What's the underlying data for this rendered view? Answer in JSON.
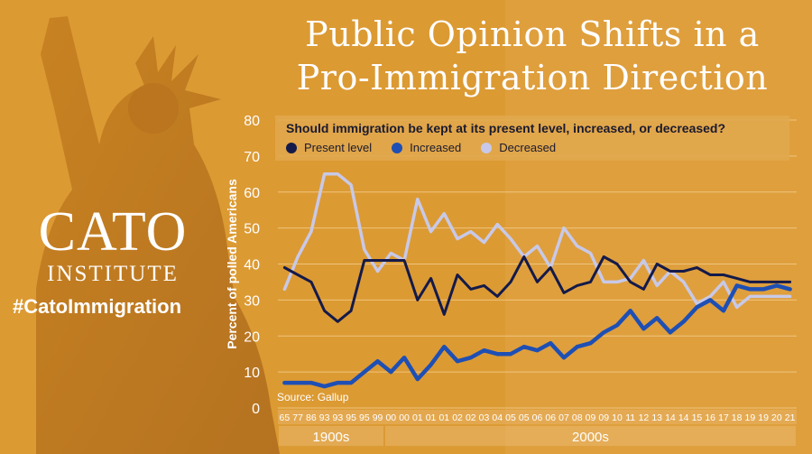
{
  "title_lines": [
    "Public Opinion Shifts in a",
    "Pro-Immigration Direction"
  ],
  "logo": {
    "word": "CATO",
    "sub": "INSTITUTE"
  },
  "hashtag": "#CatoImmigration",
  "source": "Source: Gallup",
  "colors": {
    "background": "#dc9a33",
    "present": "#141a4a",
    "increased": "#1e4fb4",
    "decreased": "#c8c9e8"
  },
  "chart_data": {
    "type": "line",
    "question": "Should immigration be kept at its present level, increased, or decreased?",
    "ylabel": "Percent of polled Americans",
    "ylim": [
      0,
      80
    ],
    "yticks": [
      0,
      10,
      20,
      30,
      40,
      50,
      60,
      70,
      80
    ],
    "x": [
      "65",
      "77",
      "86",
      "93",
      "93",
      "95",
      "95",
      "99",
      "00",
      "00",
      "01",
      "01",
      "01",
      "02",
      "02",
      "03",
      "04",
      "05",
      "05",
      "06",
      "06",
      "07",
      "08",
      "09",
      "09",
      "10",
      "11",
      "12",
      "13",
      "14",
      "14",
      "15",
      "16",
      "17",
      "18",
      "19",
      "19",
      "20",
      "21"
    ],
    "groups": [
      {
        "label": "1900s",
        "from": 0,
        "to": 7
      },
      {
        "label": "2000s",
        "from": 8,
        "to": 38
      }
    ],
    "grid": true,
    "legend_position": "top",
    "series": [
      {
        "name": "Present level",
        "values": [
          39,
          37,
          35,
          27,
          24,
          27,
          41,
          41,
          41,
          41,
          30,
          36,
          26,
          37,
          33,
          34,
          31,
          35,
          42,
          35,
          39,
          32,
          34,
          35,
          42,
          40,
          35,
          33,
          40,
          38,
          38,
          39,
          37,
          37,
          36,
          35,
          35,
          35,
          35
        ]
      },
      {
        "name": "Increased",
        "values": [
          7,
          7,
          7,
          6,
          7,
          7,
          10,
          13,
          10,
          14,
          8,
          12,
          17,
          13,
          14,
          16,
          15,
          15,
          17,
          16,
          18,
          14,
          17,
          18,
          21,
          23,
          27,
          22,
          25,
          21,
          24,
          28,
          30,
          27,
          34,
          33,
          33,
          34,
          33
        ]
      },
      {
        "name": "Decreased",
        "values": [
          33,
          42,
          49,
          65,
          65,
          62,
          44,
          38,
          43,
          41,
          58,
          49,
          54,
          47,
          49,
          46,
          51,
          47,
          42,
          45,
          39,
          50,
          45,
          43,
          35,
          35,
          36,
          41,
          34,
          38,
          35,
          29,
          31,
          35,
          28,
          31,
          31,
          31,
          31
        ]
      }
    ]
  }
}
